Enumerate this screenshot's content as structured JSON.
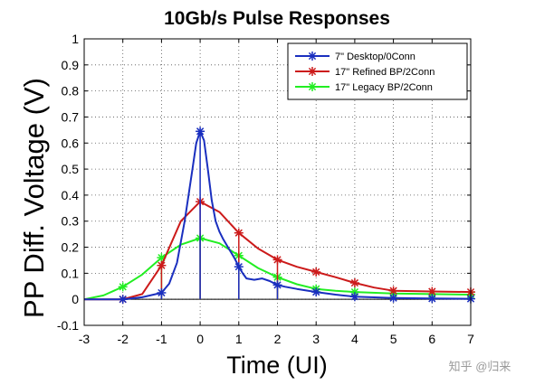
{
  "chart_data": {
    "type": "line",
    "title": "10Gb/s Pulse Responses",
    "xlabel": "Time (UI)",
    "ylabel": "PP Diff. Voltage (V)",
    "xlim": [
      -3,
      7
    ],
    "ylim": [
      -0.1,
      1
    ],
    "x_ticks": [
      "-3",
      "-2",
      "-1",
      "0",
      "1",
      "2",
      "3",
      "4",
      "5",
      "6",
      "7"
    ],
    "y_ticks": [
      "-0.1",
      "0",
      "0.1",
      "0.2",
      "0.3",
      "0.4",
      "0.5",
      "0.6",
      "0.7",
      "0.8",
      "0.9",
      "1"
    ],
    "grid": true,
    "legend_position": "top-right",
    "sample_x": [
      -2,
      -1,
      0,
      1,
      2,
      3,
      4,
      5,
      6,
      7
    ],
    "series": [
      {
        "name": "7\" Desktop/0Conn",
        "color": "#1a2fbf",
        "curve_x": [
          -3,
          -2,
          -1.5,
          -1,
          -0.8,
          -0.6,
          -0.4,
          -0.2,
          -0.1,
          0,
          0.1,
          0.2,
          0.3,
          0.4,
          0.5,
          0.6,
          0.7,
          0.8,
          0.9,
          1.0,
          1.1,
          1.2,
          1.4,
          1.6,
          1.8,
          2.0,
          2.2,
          2.5,
          3,
          3.5,
          4,
          5,
          6,
          7
        ],
        "curve_y": [
          0.0,
          0.0,
          0.008,
          0.025,
          0.06,
          0.14,
          0.3,
          0.5,
          0.6,
          0.645,
          0.61,
          0.5,
          0.38,
          0.3,
          0.26,
          0.23,
          0.205,
          0.18,
          0.155,
          0.125,
          0.1,
          0.08,
          0.075,
          0.08,
          0.07,
          0.055,
          0.048,
          0.04,
          0.028,
          0.018,
          0.01,
          0.005,
          0.003,
          0.002
        ],
        "samples": [
          0.0,
          0.025,
          0.645,
          0.125,
          0.055,
          0.028,
          0.01,
          0.005,
          0.003,
          0.002
        ]
      },
      {
        "name": "17\" Refined BP/2Conn",
        "color": "#cc1a1a",
        "curve_x": [
          -3,
          -2.5,
          -2,
          -1.5,
          -1,
          -0.5,
          0,
          0.5,
          1,
          1.5,
          2,
          2.5,
          3,
          3.5,
          4,
          4.5,
          5,
          6,
          7
        ],
        "curve_y": [
          0.0,
          0.0,
          0.0,
          0.02,
          0.13,
          0.3,
          0.375,
          0.335,
          0.255,
          0.195,
          0.152,
          0.125,
          0.105,
          0.085,
          0.063,
          0.045,
          0.033,
          0.03,
          0.028
        ],
        "samples": [
          0.0,
          0.13,
          0.375,
          0.255,
          0.152,
          0.105,
          0.063,
          0.033,
          0.03,
          0.028
        ]
      },
      {
        "name": "17\" Legacy BP/2Conn",
        "color": "#22ee22",
        "curve_x": [
          -3,
          -2.5,
          -2,
          -1.5,
          -1,
          -0.5,
          0,
          0.5,
          1,
          1.5,
          2,
          2.5,
          3,
          3.5,
          4,
          5,
          6,
          7
        ],
        "curve_y": [
          0.0,
          0.015,
          0.048,
          0.095,
          0.16,
          0.21,
          0.235,
          0.215,
          0.168,
          0.12,
          0.085,
          0.058,
          0.04,
          0.033,
          0.028,
          0.022,
          0.02,
          0.018
        ],
        "samples": [
          0.048,
          0.16,
          0.235,
          0.168,
          0.085,
          0.04,
          0.028,
          0.022,
          0.02,
          0.018
        ]
      }
    ]
  },
  "watermark": "知乎 @归来"
}
